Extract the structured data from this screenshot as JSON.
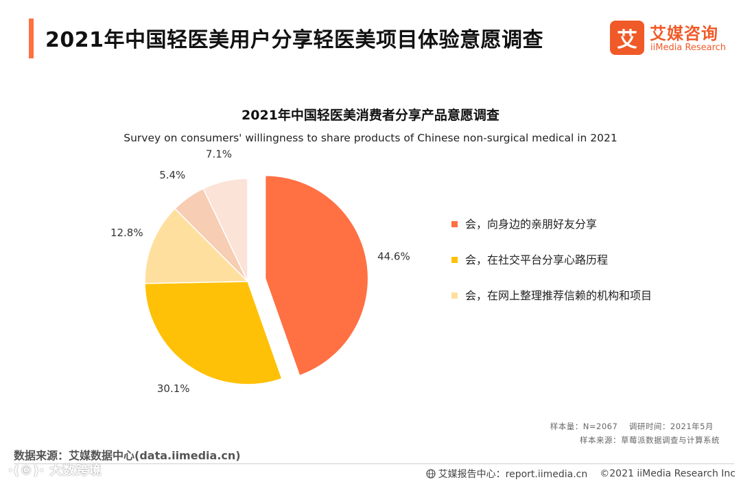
{
  "header": {
    "title": "2021年中国轻医美用户分享轻医美项目体验意愿调查",
    "brand_logo_char": "艾",
    "brand_name_cn": "艾媒咨询",
    "brand_name_en": "iiMedia Research"
  },
  "chart_data": {
    "type": "pie",
    "title": "2021年中国轻医美消费者分享产品意愿调查",
    "subtitle": "Survey on consumers' willingness to share products of Chinese non-surgical medical in 2021",
    "slices": [
      {
        "label": "会，向身边的亲朋好友分享",
        "value": 44.6,
        "value_label": "44.6%",
        "color": "#ff7043",
        "in_legend": true
      },
      {
        "label": "会，在社交平台分享心路历程",
        "value": 30.1,
        "value_label": "30.1%",
        "color": "#ffc107",
        "in_legend": true
      },
      {
        "label": "会，在网上整理推荐信赖的机构和项目",
        "value": 12.8,
        "value_label": "12.8%",
        "color": "#ffdf9e",
        "in_legend": true
      },
      {
        "label": "",
        "value": 5.4,
        "value_label": "5.4%",
        "color": "#f7cdb3",
        "in_legend": false
      },
      {
        "label": "",
        "value": 7.1,
        "value_label": "7.1%",
        "color": "#fbe3d8",
        "in_legend": false
      }
    ],
    "legend_position": "right"
  },
  "notes": {
    "sample_size": "样本量：N=2067    调研时间：2021年5月",
    "sample_source": "样本来源：草莓派数据调查与计算系统"
  },
  "footer": {
    "data_source": "数据来源：艾媒数据中心(data.iimedia.cn)",
    "watermark": "·(©)· 大数跨境",
    "report_center": "艾媒报告中心：report.iimedia.cn",
    "copyright": "©2021  iiMedia Research  Inc"
  }
}
